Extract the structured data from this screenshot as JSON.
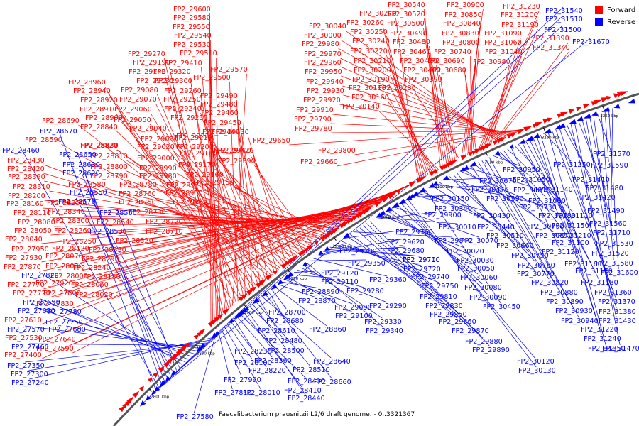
{
  "caption": "Faecalibacterium prausnitzii L2/6 draft genome. - 0..3321367",
  "legend": [
    {
      "label": "Forward",
      "color": "#ff0000"
    },
    {
      "label": "Reverse",
      "color": "#0000ff"
    }
  ],
  "colors": {
    "forward": "#ff0000",
    "reverse": "#0000ff",
    "backbone": "#555555",
    "tick_label": "#000000"
  },
  "scale_ticks": [
    "2800 kbp",
    "2850 kbp",
    "2900 kbp",
    "2950 kbp",
    "3000 kbp",
    "3050 kbp",
    "3100 kbp",
    "3150 kbp",
    "3200 kbp",
    "3250 kbp"
  ],
  "forward_labels": [
    "FP2_29600",
    "FP2_29580",
    "FP2_29550",
    "FP2_29540",
    "FP2_29530",
    "FP2_29510",
    "FP2_29270",
    "FP2_29190",
    "FP2_29410",
    "FP2_29320",
    "FP2_29140",
    "FP2_29300",
    "FP2_29570",
    "FP2_28960",
    "FP2_29130",
    "FP2_29500",
    "FP2_28940",
    "FP2_29080",
    "FP2_29260",
    "FP2_29490",
    "FP2_28920",
    "FP2_29070",
    "FP2_29250",
    "FP2_29480",
    "FP2_28910",
    "FP2_29060",
    "FP2_29240",
    "FP2_29460",
    "FP2_28900",
    "FP2_29050",
    "FP2_29230",
    "FP2_29450",
    "FP2_28690",
    "FP2_28840",
    "FP2_29040",
    "FP2_29220",
    "FP2_29440",
    "FP2_28590",
    "FP2_28830",
    "FP2_29030",
    "FP2_29210",
    "FP2_29430",
    "FP2_28820",
    "FP2_29020",
    "FP2_29200",
    "FP2_29420",
    "FP2_28430",
    "FP2_28810",
    "FP2_29000",
    "FP2_29180",
    "FP2_29400",
    "FP2_28420",
    "FP2_28800",
    "FP2_28990",
    "FP2_29170",
    "FP2_29390",
    "FP2_28390",
    "FP2_28790",
    "FP2_28980",
    "FP2_29160",
    "FP2_28310",
    "FP2_28580",
    "FP2_28780",
    "FP2_28970",
    "FP2_29150",
    "FP2_28200",
    "FP2_28760",
    "FP2_28950",
    "FP2_28160",
    "FP2_28350",
    "FP2_28750",
    "FP2_28930",
    "FP2_28110",
    "FP2_28340",
    "FP2_28730",
    "FP2_28080",
    "FP2_28300",
    "FP2_28540",
    "FP2_28720",
    "FP2_28050",
    "FP2_28260",
    "FP2_28710",
    "FP2_28040",
    "FP2_28250",
    "FP2_28520",
    "FP2_27950",
    "FP2_28120",
    "FP2_28330",
    "FP2_27930",
    "FP2_28070",
    "FP2_28290",
    "FP2_27870",
    "FP2_28030",
    "FP2_28240",
    "FP2_28000",
    "FP2_28180",
    "FP2_27770",
    "FP2_27920",
    "FP2_28060",
    "FP2_27720",
    "FP2_27890",
    "FP2_28020",
    "FP2_27830",
    "FP2_27610",
    "FP2_27640",
    "FP2_27530",
    "FP2_27590",
    "FP2_27400",
    "FP2_30270",
    "FP2_30260",
    "FP2_30250",
    "FP2_30240",
    "FP2_30220",
    "FP2_30210",
    "FP2_30200",
    "FP2_30190",
    "FP2_30180",
    "FP2_30160",
    "FP2_30140",
    "FP2_30540",
    "FP2_30520",
    "FP2_30500",
    "FP2_30490",
    "FP2_30480",
    "FP2_30460",
    "FP2_30420",
    "FP2_30400",
    "FP2_30390",
    "FP2_30280",
    "FP2_30900",
    "FP2_30850",
    "FP2_30840",
    "FP2_30830",
    "FP2_30800",
    "FP2_30740",
    "FP2_30690",
    "FP2_30680",
    "FP2_31230",
    "FP2_31200",
    "FP2_31190",
    "FP2_31090",
    "FP2_31060",
    "FP2_31040",
    "FP2_30980",
    "FP2_31390",
    "FP2_31340",
    "FP2_30040",
    "FP2_30000",
    "FP2_29980",
    "FP2_29970",
    "FP2_29960",
    "FP2_29950",
    "FP2_29940",
    "FP2_29930",
    "FP2_29920",
    "FP2_29910",
    "FP2_29790",
    "FP2_29780",
    "FP2_29650",
    "FP2_29800",
    "FP2_29660"
  ],
  "reverse_labels": [
    "FP2_31540",
    "FP2_31510",
    "FP2_31500",
    "FP2_31670",
    "FP2_28670",
    "FP2_28460",
    "FP2_28650",
    "FP2_28630",
    "FP2_28620",
    "FP2_28550",
    "FP2_28570",
    "FP2_28560",
    "FP2_28530",
    "FP2_27820",
    "FP2_27690",
    "FP2_27630",
    "FP2_27780",
    "FP2_27750",
    "FP2_27680",
    "FP2_27570",
    "FP2_27460",
    "FP2_27350",
    "FP2_27300",
    "FP2_27240",
    "FP2_27580",
    "FP2_27810",
    "FP2_27990",
    "FP2_28010",
    "FP2_28100",
    "FP2_28220",
    "FP2_28230",
    "FP2_28360",
    "FP2_28400",
    "FP2_28410",
    "FP2_28440",
    "FP2_28480",
    "FP2_28500",
    "FP2_28510",
    "FP2_28610",
    "FP2_28640",
    "FP2_28660",
    "FP2_28680",
    "FP2_28700",
    "FP2_28860",
    "FP2_28870",
    "FP2_28890",
    "FP2_29090",
    "FP2_29100",
    "FP2_29110",
    "FP2_29120",
    "FP2_29280",
    "FP2_29290",
    "FP2_29330",
    "FP2_29340",
    "FP2_29350",
    "FP2_29360",
    "FP2_29380",
    "FP2_29620",
    "FP2_29680",
    "FP2_29700",
    "FP2_29710",
    "FP2_29720",
    "FP2_29740",
    "FP2_29750",
    "FP2_29760",
    "FP2_29810",
    "FP2_29830",
    "FP2_29840",
    "FP2_29850",
    "FP2_29860",
    "FP2_29870",
    "FP2_29880",
    "FP2_29890",
    "FP2_29900",
    "FP2_30010",
    "FP2_30020",
    "FP2_30030",
    "FP2_30050",
    "FP2_30060",
    "FP2_30070",
    "FP2_30080",
    "FP2_30090",
    "FP2_30120",
    "FP2_30130",
    "FP2_30150",
    "FP2_30340",
    "FP2_30430",
    "FP2_30440",
    "FP2_30450",
    "FP2_30470",
    "FP2_30510",
    "FP2_30590",
    "FP2_30660",
    "FP2_30670",
    "FP2_30730",
    "FP2_30750",
    "FP2_30760",
    "FP2_30770",
    "FP2_30780",
    "FP2_30790",
    "FP2_30810",
    "FP2_30820",
    "FP2_30870",
    "FP2_30880",
    "FP2_30890",
    "FP2_30930",
    "FP2_30940",
    "FP2_30950",
    "FP2_31050",
    "FP2_31080",
    "FP2_31100",
    "FP2_31110",
    "FP2_31120",
    "FP2_31140",
    "FP2_31150",
    "FP2_31160",
    "FP2_31170",
    "FP2_31180",
    "FP2_31210",
    "FP2_31220",
    "FP2_31240",
    "FP2_31250",
    "FP2_31350",
    "FP2_31360",
    "FP2_31370",
    "FP2_31380",
    "FP2_31410",
    "FP2_31420",
    "FP2_31430",
    "FP2_31470",
    "FP2_31480",
    "FP2_31490",
    "FP2_31520",
    "FP2_31530",
    "FP2_31560",
    "FP2_31570",
    "FP2_31580",
    "FP2_31590",
    "FP2_31600",
    "FP2_31710"
  ]
}
